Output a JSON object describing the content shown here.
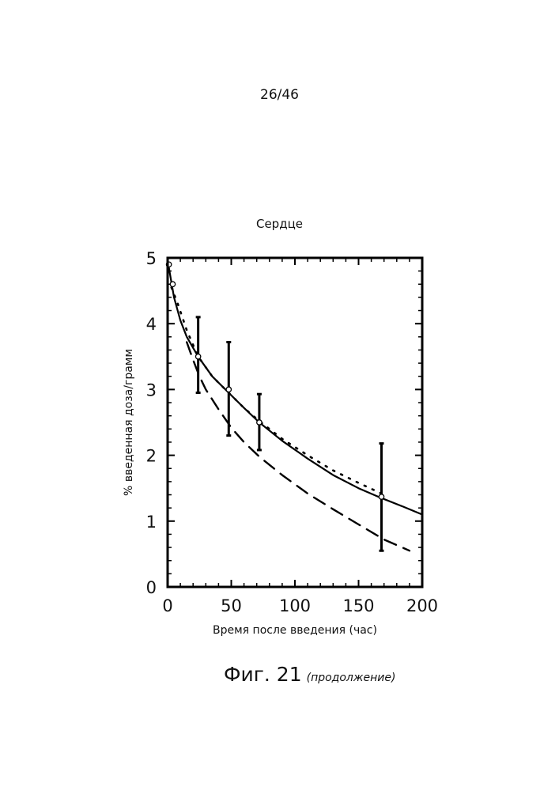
{
  "page_number": "26/46",
  "caption": {
    "label": "Фиг. 21",
    "continuation": "(продолжение)"
  },
  "chart_data": {
    "type": "line",
    "title": "Сердце",
    "xlabel": "Время после введения (час)",
    "ylabel": "% введенная доза/грамм",
    "xlim": [
      0,
      200
    ],
    "ylim": [
      0,
      5
    ],
    "xticks": [
      0,
      50,
      100,
      150,
      200
    ],
    "yticks": [
      0,
      1,
      2,
      3,
      4,
      5
    ],
    "grid": false,
    "legend": "none",
    "points": [
      {
        "x": 1,
        "y": 4.9
      },
      {
        "x": 4,
        "y": 4.6
      },
      {
        "x": 24,
        "y": 3.5,
        "err_low": 2.95,
        "err_high": 4.1
      },
      {
        "x": 48,
        "y": 3.0,
        "err_low": 2.3,
        "err_high": 3.72
      },
      {
        "x": 72,
        "y": 2.5,
        "err_low": 2.08,
        "err_high": 2.93
      },
      {
        "x": 168,
        "y": 1.37,
        "err_low": 0.55,
        "err_high": 2.18
      }
    ],
    "series": [
      {
        "style": "solid",
        "x": [
          1,
          5,
          10,
          15,
          24,
          35,
          48,
          60,
          72,
          90,
          110,
          130,
          150,
          168,
          185,
          200
        ],
        "y": [
          4.85,
          4.4,
          4.05,
          3.8,
          3.5,
          3.2,
          2.95,
          2.72,
          2.5,
          2.22,
          1.95,
          1.7,
          1.5,
          1.35,
          1.22,
          1.1
        ]
      },
      {
        "style": "dotted",
        "x": [
          3,
          8,
          15,
          24,
          35,
          48,
          60,
          72,
          90,
          110,
          130,
          150,
          168
        ],
        "y": [
          4.55,
          4.3,
          3.9,
          3.5,
          3.2,
          2.95,
          2.72,
          2.52,
          2.25,
          2.0,
          1.77,
          1.58,
          1.42
        ]
      },
      {
        "style": "dashed",
        "x": [
          15,
          20,
          25,
          30,
          40,
          50,
          60,
          72,
          90,
          110,
          130,
          150,
          170,
          190
        ],
        "y": [
          3.72,
          3.45,
          3.2,
          3.0,
          2.7,
          2.42,
          2.2,
          1.98,
          1.7,
          1.42,
          1.18,
          0.95,
          0.72,
          0.55
        ]
      }
    ]
  }
}
